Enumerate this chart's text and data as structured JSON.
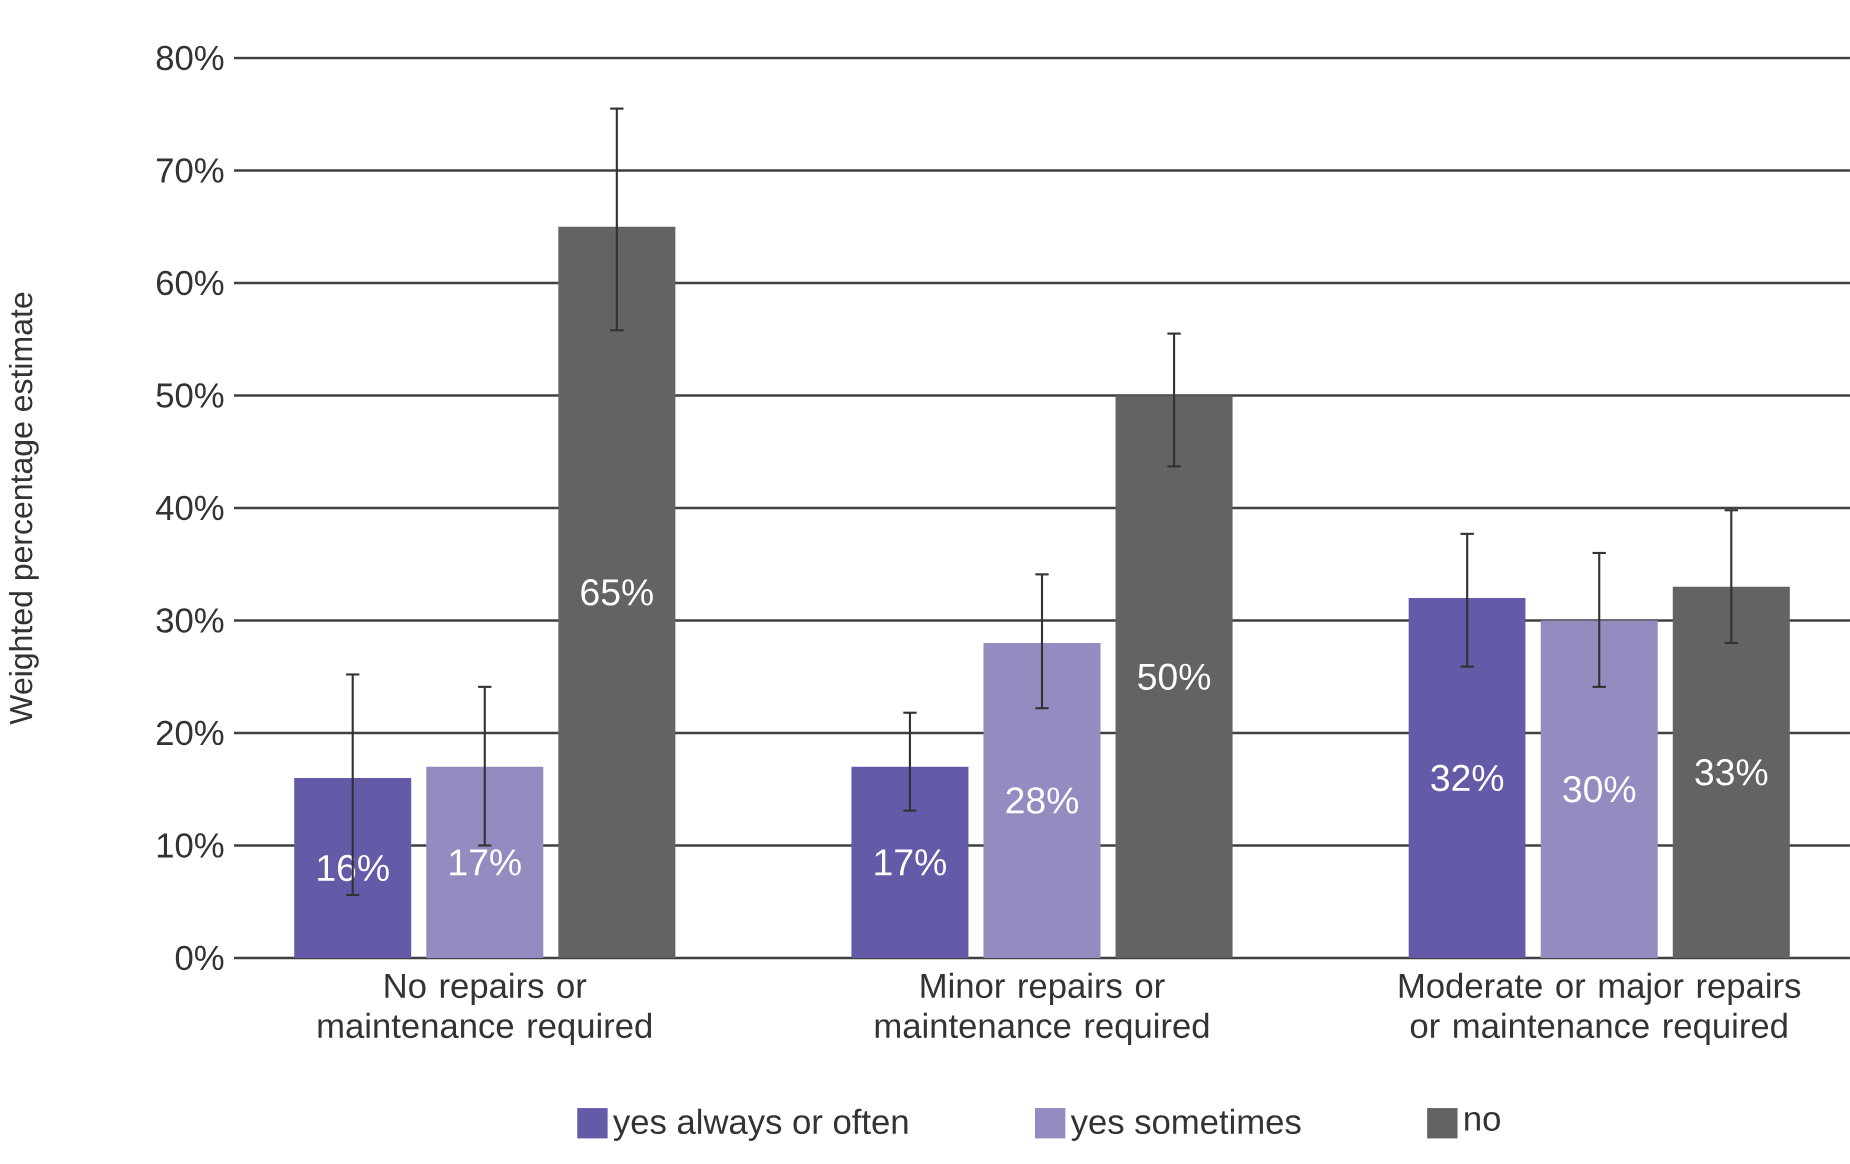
{
  "chart_data": {
    "type": "bar",
    "ylabel": "Weighted percentage estimate",
    "categories": [
      "No repairs or maintenance required",
      "Minor repairs or maintenance required",
      "Moderate or major repairs or maintenance required"
    ],
    "series": [
      {
        "name": "yes always or often",
        "color": "#635ba8",
        "values": [
          16,
          17,
          32
        ],
        "value_labels": [
          "16%",
          "17%",
          "32%"
        ],
        "errors": [
          [
            5.6,
            25.2
          ],
          [
            13.1,
            21.8
          ],
          [
            25.9,
            37.7
          ]
        ]
      },
      {
        "name": "yes sometimes",
        "color": "#948cc0",
        "values": [
          17,
          28,
          30
        ],
        "value_labels": [
          "17%",
          "28%",
          "30%"
        ],
        "errors": [
          [
            10.0,
            24.1
          ],
          [
            22.2,
            34.1
          ],
          [
            24.1,
            36.0
          ]
        ]
      },
      {
        "name": "no",
        "color": "#636365",
        "values": [
          65,
          50,
          33
        ],
        "value_labels": [
          "65%",
          "50%",
          "33%"
        ],
        "errors": [
          [
            55.8,
            75.5
          ],
          [
            43.7,
            55.5
          ],
          [
            28.0,
            39.8
          ]
        ]
      }
    ],
    "ylim": [
      0,
      80
    ],
    "yticks": [
      {
        "value": 0,
        "label": "0%"
      },
      {
        "value": 10,
        "label": "10%"
      },
      {
        "value": 20,
        "label": "20%"
      },
      {
        "value": 30,
        "label": "30%"
      },
      {
        "value": 40,
        "label": "40%"
      },
      {
        "value": 50,
        "label": "50%"
      },
      {
        "value": 60,
        "label": "60%"
      },
      {
        "value": 70,
        "label": "70%"
      },
      {
        "value": 80,
        "label": "80%"
      }
    ],
    "grid": "y",
    "legend": "bottom"
  }
}
